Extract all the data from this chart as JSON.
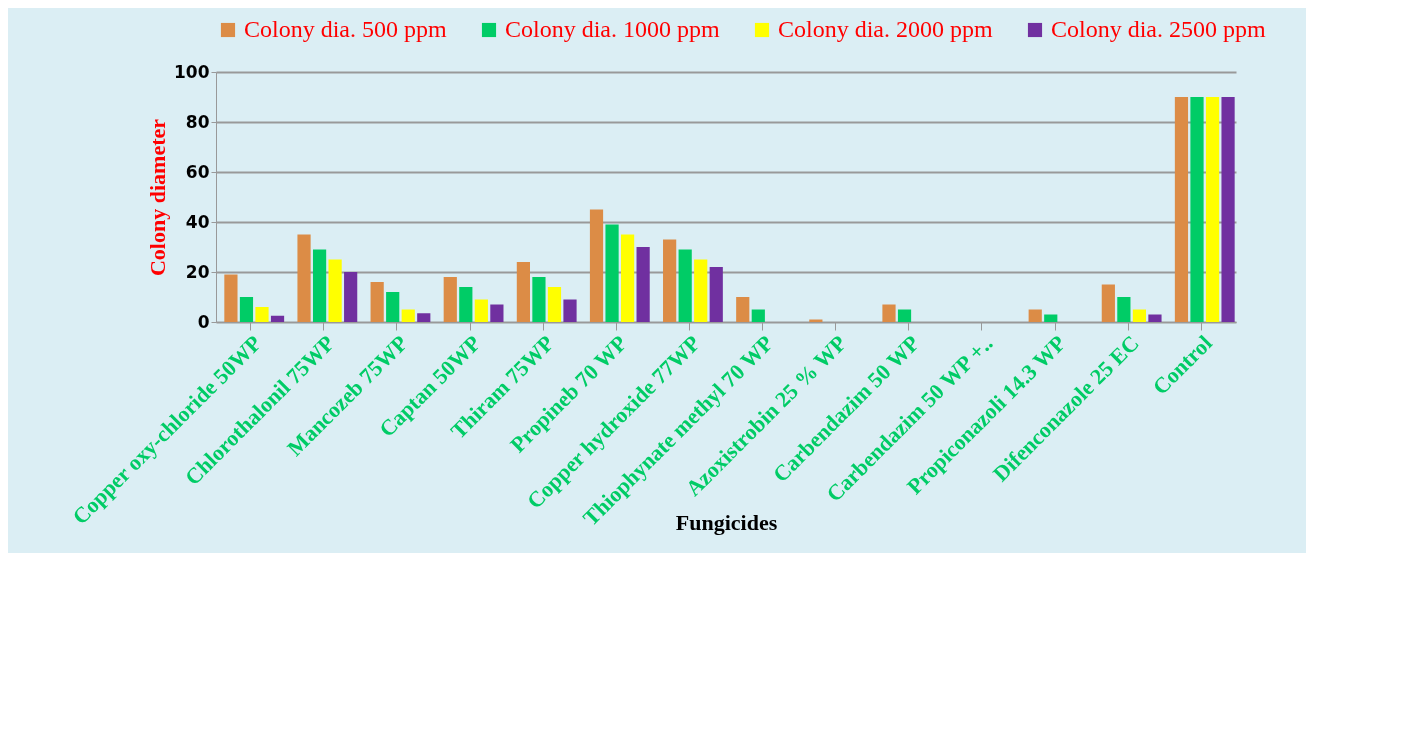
{
  "chart_data": {
    "type": "bar",
    "xlabel": "Fungicides",
    "ylabel": "Colony diameter",
    "categories": [
      "Copper oxy-chloride 50WP",
      "Chlorothalonil 75WP",
      "Mancozeb 75WP",
      "Captan 50WP",
      "Thiram 75WP",
      "Propineb 70 WP",
      "Copper hydroxide 77WP",
      "Thiophynate methyl 70 WP",
      "Azoxistrobin 25 % WP",
      "Carbendazim 50 WP",
      "Carbendazim 50 WP +..",
      "Propiconazoli 14.3 WP",
      "Difenconazole 25 EC",
      "Control"
    ],
    "series": [
      {
        "name": "Colony dia. 500 ppm",
        "color": "#dc8c46",
        "values": [
          19,
          35,
          16,
          18,
          24,
          45,
          33,
          10,
          1,
          7,
          0,
          5,
          15,
          90
        ]
      },
      {
        "name": "Colony dia. 1000 ppm",
        "color": "#00cc66",
        "values": [
          10,
          29,
          12,
          14,
          18,
          39,
          29,
          5,
          0,
          5,
          0,
          3,
          10,
          90
        ]
      },
      {
        "name": "Colony dia. 2000 ppm",
        "color": "#ffff00",
        "values": [
          6,
          25,
          5,
          9,
          14,
          35,
          25,
          0,
          0,
          0,
          0,
          0,
          5,
          90
        ]
      },
      {
        "name": "Colony dia. 2500 ppm",
        "color": "#7030a0",
        "values": [
          2.5,
          20,
          3.5,
          7,
          9,
          30,
          22,
          0,
          0,
          0,
          0,
          0,
          3,
          90
        ]
      }
    ],
    "ylim": [
      0,
      100
    ],
    "yticks": [
      0,
      20,
      40,
      60,
      80,
      100
    ],
    "grid": "y",
    "legend": "top"
  }
}
